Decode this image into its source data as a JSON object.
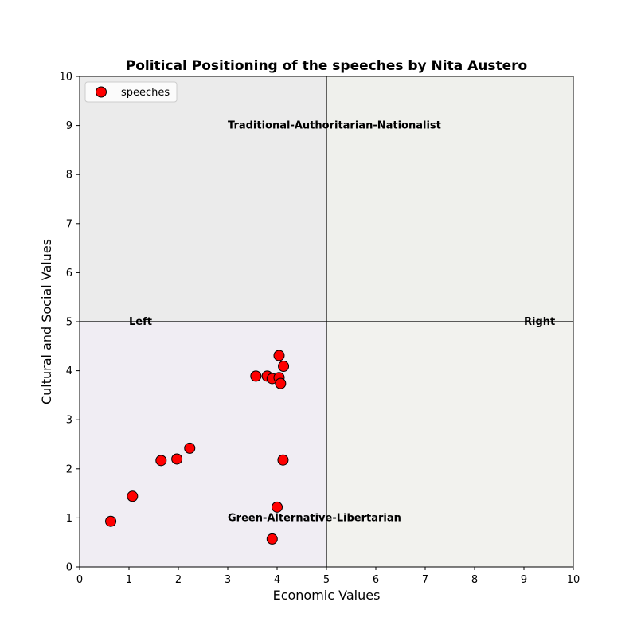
{
  "chart_data": {
    "type": "scatter",
    "title": "Political Positioning of the speeches by Nita Austero",
    "xlabel": "Economic Values",
    "ylabel": "Cultural and Social Values",
    "xlim": [
      0,
      10
    ],
    "ylim": [
      0,
      10
    ],
    "xticks": [
      0,
      1,
      2,
      3,
      4,
      5,
      6,
      7,
      8,
      9,
      10
    ],
    "yticks": [
      0,
      1,
      2,
      3,
      4,
      5,
      6,
      7,
      8,
      9,
      10
    ],
    "divider_x": 5,
    "divider_y": 5,
    "grid": false,
    "legend_position": "top-left",
    "quadrant_colors": {
      "top_left": "#ebebeb",
      "top_right": "#eff0ec",
      "bottom_left": "#f0edf3",
      "bottom_right": "#f2f2ee"
    },
    "annotations": [
      {
        "text": "Traditional-Authoritarian-Nationalist",
        "x": 3.0,
        "y": 9.0
      },
      {
        "text": "Green-Alternative-Libertarian",
        "x": 3.0,
        "y": 1.0
      },
      {
        "text": "Left",
        "x": 1.0,
        "y": 5.0
      },
      {
        "text": "Right",
        "x": 9.0,
        "y": 5.0
      }
    ],
    "series": [
      {
        "name": "speeches",
        "color": "#ff0000",
        "edge_color": "#000000",
        "points": [
          {
            "x": 0.63,
            "y": 0.93
          },
          {
            "x": 1.07,
            "y": 1.44
          },
          {
            "x": 1.65,
            "y": 2.17
          },
          {
            "x": 1.97,
            "y": 2.2
          },
          {
            "x": 2.23,
            "y": 2.42
          },
          {
            "x": 3.57,
            "y": 3.89
          },
          {
            "x": 3.8,
            "y": 3.89
          },
          {
            "x": 3.9,
            "y": 3.84
          },
          {
            "x": 4.04,
            "y": 3.86
          },
          {
            "x": 4.07,
            "y": 3.74
          },
          {
            "x": 4.04,
            "y": 4.31
          },
          {
            "x": 4.13,
            "y": 4.09
          },
          {
            "x": 4.12,
            "y": 2.18
          },
          {
            "x": 4.0,
            "y": 1.22
          },
          {
            "x": 3.9,
            "y": 0.57
          }
        ]
      }
    ]
  }
}
